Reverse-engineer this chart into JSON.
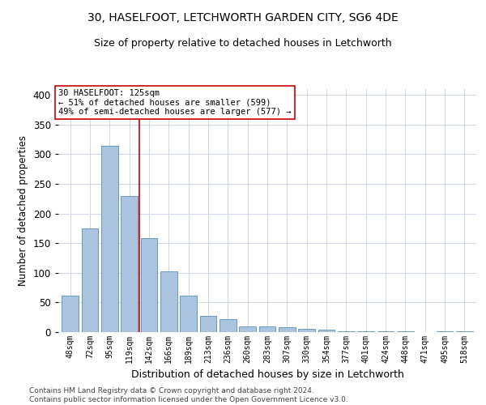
{
  "title": "30, HASELFOOT, LETCHWORTH GARDEN CITY, SG6 4DE",
  "subtitle": "Size of property relative to detached houses in Letchworth",
  "xlabel": "Distribution of detached houses by size in Letchworth",
  "ylabel": "Number of detached properties",
  "categories": [
    "48sqm",
    "72sqm",
    "95sqm",
    "119sqm",
    "142sqm",
    "166sqm",
    "189sqm",
    "213sqm",
    "236sqm",
    "260sqm",
    "283sqm",
    "307sqm",
    "330sqm",
    "354sqm",
    "377sqm",
    "401sqm",
    "424sqm",
    "448sqm",
    "471sqm",
    "495sqm",
    "518sqm"
  ],
  "values": [
    62,
    175,
    315,
    230,
    158,
    102,
    61,
    28,
    22,
    9,
    10,
    8,
    5,
    4,
    2,
    2,
    1,
    1,
    0,
    1,
    1
  ],
  "bar_color": "#aac4e0",
  "bar_edge_color": "#5b8db8",
  "vline_x_index": 3,
  "vline_color": "#cc0000",
  "annotation_text": "30 HASELFOOT: 125sqm\n← 51% of detached houses are smaller (599)\n49% of semi-detached houses are larger (577) →",
  "annotation_box_color": "#ffffff",
  "annotation_box_edge": "#cc0000",
  "ylim": [
    0,
    410
  ],
  "yticks": [
    0,
    50,
    100,
    150,
    200,
    250,
    300,
    350,
    400
  ],
  "footer": "Contains HM Land Registry data © Crown copyright and database right 2024.\nContains public sector information licensed under the Open Government Licence v3.0.",
  "background_color": "#ffffff",
  "grid_color": "#d0d8e8"
}
